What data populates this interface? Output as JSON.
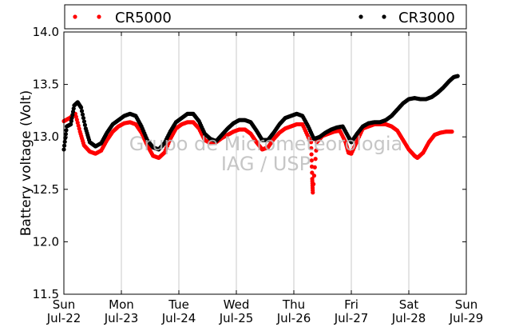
{
  "chart_data": {
    "type": "scatter",
    "ylabel": "Battery voltage (Volt)",
    "xlabel": "",
    "title": "",
    "ylim": [
      11.5,
      14.0
    ],
    "xlim": [
      0,
      7
    ],
    "yticks": [
      "11.5",
      "12.0",
      "12.5",
      "13.0",
      "13.5",
      "14.0"
    ],
    "xticks": [
      {
        "day": "Sun",
        "date": "Jul-22"
      },
      {
        "day": "Mon",
        "date": "Jul-23"
      },
      {
        "day": "Tue",
        "date": "Jul-24"
      },
      {
        "day": "Wed",
        "date": "Jul-25"
      },
      {
        "day": "Thu",
        "date": "Jul-26"
      },
      {
        "day": "Fri",
        "date": "Jul-27"
      },
      {
        "day": "Sat",
        "date": "Jul-28"
      },
      {
        "day": "Sun",
        "date": "Jul-29"
      }
    ],
    "grid": "vertical",
    "legend_position": "top",
    "watermark": [
      "Grupo de Micrometeorologia",
      "IAG / USP"
    ],
    "series": [
      {
        "name": "CR5000",
        "color": "#ff0000",
        "points": [
          [
            0.0,
            13.15
          ],
          [
            0.1,
            13.18
          ],
          [
            0.2,
            13.22
          ],
          [
            0.28,
            13.05
          ],
          [
            0.35,
            12.92
          ],
          [
            0.45,
            12.86
          ],
          [
            0.55,
            12.84
          ],
          [
            0.65,
            12.87
          ],
          [
            0.75,
            12.97
          ],
          [
            0.85,
            13.05
          ],
          [
            0.95,
            13.1
          ],
          [
            1.05,
            13.13
          ],
          [
            1.15,
            13.14
          ],
          [
            1.25,
            13.12
          ],
          [
            1.35,
            13.04
          ],
          [
            1.45,
            12.92
          ],
          [
            1.55,
            12.82
          ],
          [
            1.65,
            12.8
          ],
          [
            1.75,
            12.85
          ],
          [
            1.85,
            12.98
          ],
          [
            1.95,
            13.08
          ],
          [
            2.05,
            13.12
          ],
          [
            2.15,
            13.14
          ],
          [
            2.25,
            13.14
          ],
          [
            2.35,
            13.08
          ],
          [
            2.45,
            12.97
          ],
          [
            2.55,
            12.94
          ],
          [
            2.65,
            12.95
          ],
          [
            2.75,
            12.99
          ],
          [
            2.85,
            13.02
          ],
          [
            2.95,
            13.05
          ],
          [
            3.05,
            13.07
          ],
          [
            3.15,
            13.07
          ],
          [
            3.25,
            13.03
          ],
          [
            3.35,
            12.95
          ],
          [
            3.45,
            12.88
          ],
          [
            3.55,
            12.9
          ],
          [
            3.65,
            12.98
          ],
          [
            3.75,
            13.04
          ],
          [
            3.85,
            13.08
          ],
          [
            3.95,
            13.1
          ],
          [
            4.05,
            13.12
          ],
          [
            4.15,
            13.12
          ],
          [
            4.25,
            13.0
          ],
          [
            4.3,
            12.95
          ],
          [
            4.32,
            12.6
          ],
          [
            4.33,
            12.47
          ],
          [
            4.4,
            12.95
          ],
          [
            4.5,
            13.01
          ],
          [
            4.6,
            13.03
          ],
          [
            4.7,
            13.05
          ],
          [
            4.8,
            13.06
          ],
          [
            4.9,
            12.95
          ],
          [
            4.95,
            12.85
          ],
          [
            5.0,
            12.84
          ],
          [
            5.1,
            12.96
          ],
          [
            5.2,
            13.08
          ],
          [
            5.3,
            13.1
          ],
          [
            5.4,
            13.12
          ],
          [
            5.5,
            13.12
          ],
          [
            5.6,
            13.12
          ],
          [
            5.7,
            13.1
          ],
          [
            5.8,
            13.06
          ],
          [
            5.9,
            12.97
          ],
          [
            6.0,
            12.88
          ],
          [
            6.1,
            12.82
          ],
          [
            6.15,
            12.8
          ],
          [
            6.25,
            12.85
          ],
          [
            6.35,
            12.95
          ],
          [
            6.45,
            13.02
          ],
          [
            6.55,
            13.04
          ],
          [
            6.65,
            13.05
          ],
          [
            6.75,
            13.05
          ]
        ]
      },
      {
        "name": "CR3000",
        "color": "#000000",
        "points": [
          [
            0.0,
            12.88
          ],
          [
            0.05,
            13.1
          ],
          [
            0.12,
            13.12
          ],
          [
            0.18,
            13.3
          ],
          [
            0.24,
            13.33
          ],
          [
            0.3,
            13.28
          ],
          [
            0.38,
            13.08
          ],
          [
            0.45,
            12.95
          ],
          [
            0.55,
            12.91
          ],
          [
            0.65,
            12.94
          ],
          [
            0.75,
            13.04
          ],
          [
            0.85,
            13.12
          ],
          [
            0.95,
            13.16
          ],
          [
            1.05,
            13.2
          ],
          [
            1.15,
            13.22
          ],
          [
            1.25,
            13.2
          ],
          [
            1.35,
            13.1
          ],
          [
            1.45,
            12.97
          ],
          [
            1.55,
            12.9
          ],
          [
            1.65,
            12.88
          ],
          [
            1.75,
            12.94
          ],
          [
            1.85,
            13.05
          ],
          [
            1.95,
            13.14
          ],
          [
            2.05,
            13.18
          ],
          [
            2.15,
            13.22
          ],
          [
            2.25,
            13.22
          ],
          [
            2.35,
            13.15
          ],
          [
            2.45,
            13.03
          ],
          [
            2.55,
            12.98
          ],
          [
            2.65,
            12.96
          ],
          [
            2.75,
            13.02
          ],
          [
            2.85,
            13.08
          ],
          [
            2.95,
            13.13
          ],
          [
            3.05,
            13.16
          ],
          [
            3.15,
            13.16
          ],
          [
            3.25,
            13.14
          ],
          [
            3.35,
            13.06
          ],
          [
            3.45,
            12.97
          ],
          [
            3.55,
            12.97
          ],
          [
            3.65,
            13.04
          ],
          [
            3.75,
            13.12
          ],
          [
            3.85,
            13.18
          ],
          [
            3.95,
            13.2
          ],
          [
            4.05,
            13.22
          ],
          [
            4.15,
            13.2
          ],
          [
            4.25,
            13.1
          ],
          [
            4.35,
            12.98
          ],
          [
            4.45,
            13.0
          ],
          [
            4.55,
            13.04
          ],
          [
            4.65,
            13.07
          ],
          [
            4.75,
            13.09
          ],
          [
            4.85,
            13.1
          ],
          [
            4.95,
            13.0
          ],
          [
            5.0,
            12.95
          ],
          [
            5.1,
            13.03
          ],
          [
            5.2,
            13.1
          ],
          [
            5.3,
            13.13
          ],
          [
            5.4,
            13.14
          ],
          [
            5.5,
            13.14
          ],
          [
            5.6,
            13.16
          ],
          [
            5.7,
            13.2
          ],
          [
            5.8,
            13.26
          ],
          [
            5.9,
            13.32
          ],
          [
            6.0,
            13.36
          ],
          [
            6.1,
            13.37
          ],
          [
            6.2,
            13.36
          ],
          [
            6.3,
            13.36
          ],
          [
            6.4,
            13.38
          ],
          [
            6.5,
            13.42
          ],
          [
            6.6,
            13.47
          ],
          [
            6.7,
            13.53
          ],
          [
            6.78,
            13.57
          ],
          [
            6.85,
            13.58
          ]
        ]
      }
    ]
  }
}
